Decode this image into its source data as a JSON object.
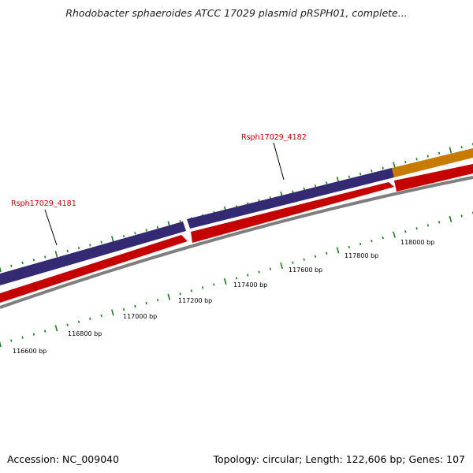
{
  "title": "Rhodobacter sphaeroides ATCC 17029 plasmid pRSPH01, complete...",
  "gene_labels": [
    {
      "id": "Rsph17029_4181",
      "label": "Rsph17029_4181"
    },
    {
      "id": "Rsph17029_4182",
      "label": "Rsph17029_4182"
    }
  ],
  "scale_labels": [
    "116600 bp",
    "116800 bp",
    "117000 bp",
    "117200 bp",
    "117400 bp",
    "117600 bp",
    "117800 bp",
    "118000 bp"
  ],
  "colors": {
    "forward_gene": "#4a3f96",
    "reverse_gene": "#ff0000",
    "other_gene": "#f5a00c",
    "backbone": "#7f7f7f",
    "ticks": "#1a7f1a",
    "label": "#cc0000"
  },
  "footer": {
    "accession": "Accession: NC_009040",
    "stats": "Topology: circular; Length: 122,606 bp; Genes: 107"
  }
}
